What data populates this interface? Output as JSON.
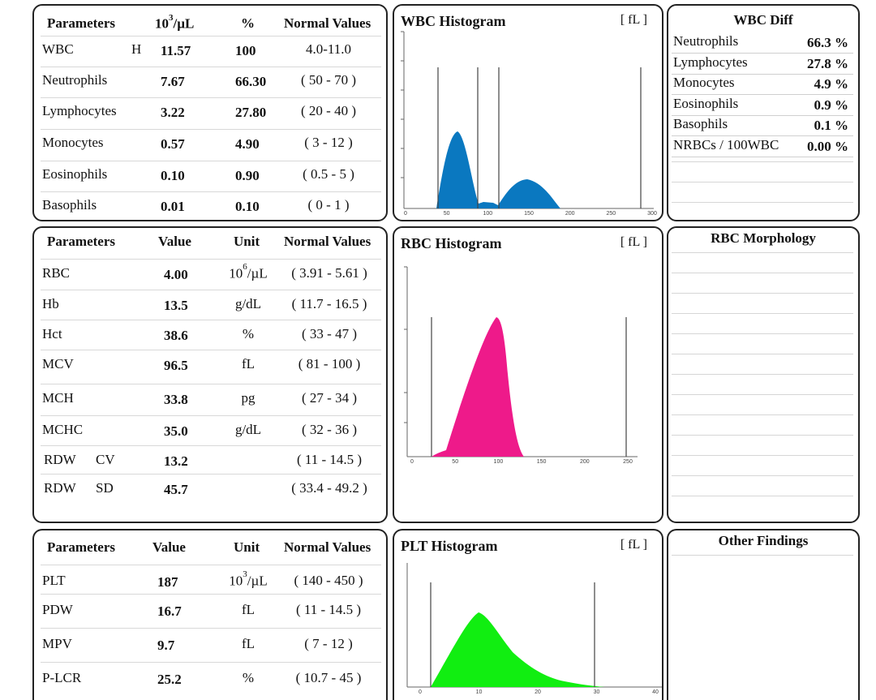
{
  "wbc_table": {
    "headers": [
      "Parameters",
      "10",
      "3",
      "/µL",
      "%",
      "Normal Values"
    ],
    "rows": [
      {
        "name": "WBC",
        "flag": "H",
        "value": "11.57",
        "pct": "100",
        "normal": "4.0-11.0"
      },
      {
        "name": "Neutrophils",
        "flag": "",
        "value": "7.67",
        "pct": "66.30",
        "normal": "( 50 - 70 )"
      },
      {
        "name": "Lymphocytes",
        "flag": "",
        "value": "3.22",
        "pct": "27.80",
        "normal": "( 20 - 40 )"
      },
      {
        "name": "Monocytes",
        "flag": "",
        "value": "0.57",
        "pct": "4.90",
        "normal": "( 3 - 12 )"
      },
      {
        "name": "Eosinophils",
        "flag": "",
        "value": "0.10",
        "pct": "0.90",
        "normal": "( 0.5 - 5 )"
      },
      {
        "name": "Basophils",
        "flag": "",
        "value": "0.01",
        "pct": "0.10",
        "normal": "( 0 - 1 )"
      }
    ]
  },
  "rbc_table": {
    "headers": [
      "Parameters",
      "Value",
      "Unit",
      "Normal Values"
    ],
    "rows": [
      {
        "name": "RBC",
        "sub": "",
        "value": "4.00",
        "unit": "10",
        "unit_sup": "6",
        "unit_tail": "/µL",
        "normal": "( 3.91 - 5.61 )"
      },
      {
        "name": "Hb",
        "sub": "",
        "value": "13.5",
        "unit": "g/dL",
        "unit_sup": "",
        "unit_tail": "",
        "normal": "( 11.7 - 16.5 )"
      },
      {
        "name": "Hct",
        "sub": "",
        "value": "38.6",
        "unit": "%",
        "unit_sup": "",
        "unit_tail": "",
        "normal": "( 33 - 47 )"
      },
      {
        "name": "MCV",
        "sub": "",
        "value": "96.5",
        "unit": "fL",
        "unit_sup": "",
        "unit_tail": "",
        "normal": "( 81 - 100 )"
      },
      {
        "name": "MCH",
        "sub": "",
        "value": "33.8",
        "unit": "pg",
        "unit_sup": "",
        "unit_tail": "",
        "normal": "( 27 - 34 )"
      },
      {
        "name": "MCHC",
        "sub": "",
        "value": "35.0",
        "unit": "g/dL",
        "unit_sup": "",
        "unit_tail": "",
        "normal": "( 32 - 36 )"
      },
      {
        "name": "RDW",
        "sub": "CV",
        "value": "13.2",
        "unit": "",
        "unit_sup": "",
        "unit_tail": "",
        "normal": "( 11 - 14.5 )"
      },
      {
        "name": "RDW",
        "sub": "SD",
        "value": "45.7",
        "unit": "",
        "unit_sup": "",
        "unit_tail": "",
        "normal": "( 33.4 - 49.2 )"
      }
    ]
  },
  "plt_table": {
    "headers": [
      "Parameters",
      "Value",
      "Unit",
      "Normal Values"
    ],
    "rows": [
      {
        "name": "PLT",
        "value": "187",
        "unit": "10",
        "unit_sup": "3",
        "unit_tail": "/µL",
        "normal": "( 140 - 450 )"
      },
      {
        "name": "PDW",
        "value": "16.7",
        "unit": "fL",
        "unit_sup": "",
        "unit_tail": "",
        "normal": "( 11 - 14.5 )"
      },
      {
        "name": "MPV",
        "value": "9.7",
        "unit": "fL",
        "unit_sup": "",
        "unit_tail": "",
        "normal": "( 7 - 12 )"
      },
      {
        "name": "P-LCR",
        "value": "25.2",
        "unit": "%",
        "unit_sup": "",
        "unit_tail": "",
        "normal": "( 10.7 - 45 )"
      }
    ]
  },
  "wbc_hist": {
    "title": "WBC Histogram",
    "unit": "[ fL ]",
    "ticks": [
      "0",
      "50",
      "100",
      "150",
      "200",
      "250",
      "300"
    ],
    "color": "#0a78c0"
  },
  "rbc_hist": {
    "title": "RBC Histogram",
    "unit": "[ fL ]",
    "ticks": [
      "0",
      "50",
      "100",
      "150",
      "200",
      "250"
    ],
    "color": "#ee1a8a"
  },
  "plt_hist": {
    "title": "PLT Histogram",
    "unit": "[ fL ]",
    "ticks": [
      "0",
      "10",
      "20",
      "30",
      "40"
    ],
    "color": "#11ee11"
  },
  "wbc_diff": {
    "title": "WBC Diff",
    "rows": [
      {
        "label": "Neutrophils",
        "value": "66.3 %"
      },
      {
        "label": "Lymphocytes",
        "value": "27.8 %"
      },
      {
        "label": "Monocytes",
        "value": "4.9 %"
      },
      {
        "label": "Eosinophils",
        "value": "0.9 %"
      },
      {
        "label": "Basophils",
        "value": "0.1 %"
      },
      {
        "label": "NRBCs / 100WBC",
        "value": "0.00 %"
      }
    ]
  },
  "rbc_morph": {
    "title": "RBC Morphology"
  },
  "other": {
    "title": "Other Findings"
  }
}
